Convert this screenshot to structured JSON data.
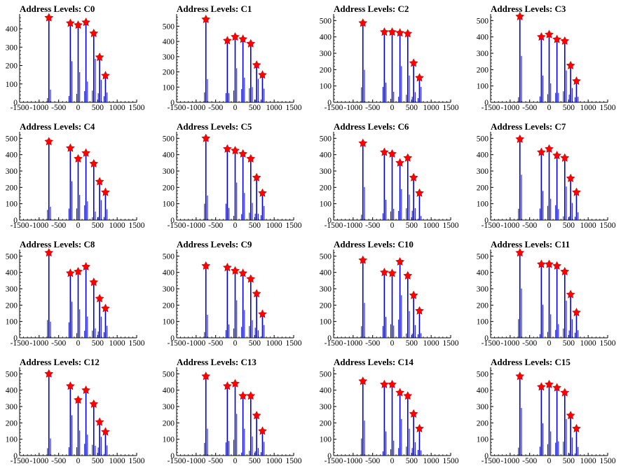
{
  "chart_data": {
    "type": "bar",
    "title_prefix": "Address Levels: ",
    "xlim": [
      -1500,
      1500
    ],
    "xticks": [
      -1500,
      -1000,
      -500,
      0,
      500,
      1000,
      1500
    ],
    "ylim": [
      0,
      550
    ],
    "colors": {
      "bars": "#0000cc",
      "markers": "#ff0000",
      "axes": "#000000"
    },
    "marker_x": [
      -750,
      -200,
      0,
      200,
      400,
      550,
      700
    ],
    "panels": [
      {
        "name": "C0",
        "yticks": [
          0,
          100,
          200,
          300,
          400
        ],
        "ymax": 480,
        "peaks": [
          460,
          430,
          420,
          435,
          375,
          245,
          145
        ]
      },
      {
        "name": "C1",
        "yticks": [
          0,
          100,
          200,
          300,
          400,
          500
        ],
        "ymax": 580,
        "peaks": [
          545,
          405,
          430,
          415,
          385,
          245,
          180
        ]
      },
      {
        "name": "C2",
        "yticks": [
          0,
          100,
          200,
          300,
          400,
          500
        ],
        "ymax": 540,
        "peaks": [
          485,
          430,
          430,
          425,
          420,
          240,
          150
        ]
      },
      {
        "name": "C3",
        "yticks": [
          0,
          100,
          200,
          300,
          400,
          500
        ],
        "ymax": 540,
        "peaks": [
          525,
          400,
          415,
          385,
          375,
          225,
          130
        ]
      },
      {
        "name": "C4",
        "yticks": [
          0,
          100,
          200,
          300,
          400,
          500
        ],
        "ymax": 540,
        "peaks": [
          480,
          440,
          375,
          410,
          345,
          235,
          170
        ]
      },
      {
        "name": "C5",
        "yticks": [
          0,
          100,
          200,
          300,
          400,
          500
        ],
        "ymax": 540,
        "peaks": [
          500,
          435,
          425,
          405,
          375,
          260,
          165
        ]
      },
      {
        "name": "C6",
        "yticks": [
          0,
          100,
          200,
          300,
          400,
          500
        ],
        "ymax": 540,
        "peaks": [
          470,
          415,
          405,
          350,
          380,
          260,
          165
        ]
      },
      {
        "name": "C7",
        "yticks": [
          0,
          100,
          200,
          300,
          400,
          500
        ],
        "ymax": 540,
        "peaks": [
          495,
          415,
          435,
          395,
          380,
          255,
          170
        ]
      },
      {
        "name": "C8",
        "yticks": [
          0,
          100,
          200,
          300,
          400,
          500
        ],
        "ymax": 540,
        "peaks": [
          520,
          395,
          405,
          435,
          340,
          240,
          180
        ]
      },
      {
        "name": "C9",
        "yticks": [
          0,
          100,
          200,
          300,
          400,
          500
        ],
        "ymax": 540,
        "peaks": [
          440,
          430,
          410,
          395,
          360,
          270,
          145
        ]
      },
      {
        "name": "C10",
        "yticks": [
          0,
          100,
          200,
          300,
          400,
          500
        ],
        "ymax": 540,
        "peaks": [
          475,
          400,
          395,
          465,
          380,
          260,
          165
        ]
      },
      {
        "name": "C11",
        "yticks": [
          0,
          100,
          200,
          300,
          400,
          500
        ],
        "ymax": 540,
        "peaks": [
          520,
          450,
          450,
          440,
          405,
          265,
          155
        ]
      },
      {
        "name": "C12",
        "yticks": [
          0,
          100,
          200,
          300,
          400,
          500
        ],
        "ymax": 540,
        "peaks": [
          500,
          425,
          340,
          400,
          315,
          205,
          145
        ]
      },
      {
        "name": "C13",
        "yticks": [
          0,
          100,
          200,
          300,
          400,
          500
        ],
        "ymax": 540,
        "peaks": [
          485,
          425,
          440,
          365,
          365,
          245,
          150
        ]
      },
      {
        "name": "C14",
        "yticks": [
          0,
          100,
          200,
          300,
          400,
          500
        ],
        "ymax": 540,
        "peaks": [
          455,
          435,
          435,
          385,
          365,
          255,
          165
        ]
      },
      {
        "name": "C15",
        "yticks": [
          0,
          100,
          200,
          300,
          400,
          500
        ],
        "ymax": 540,
        "peaks": [
          485,
          420,
          435,
          415,
          385,
          245,
          165
        ]
      }
    ]
  }
}
